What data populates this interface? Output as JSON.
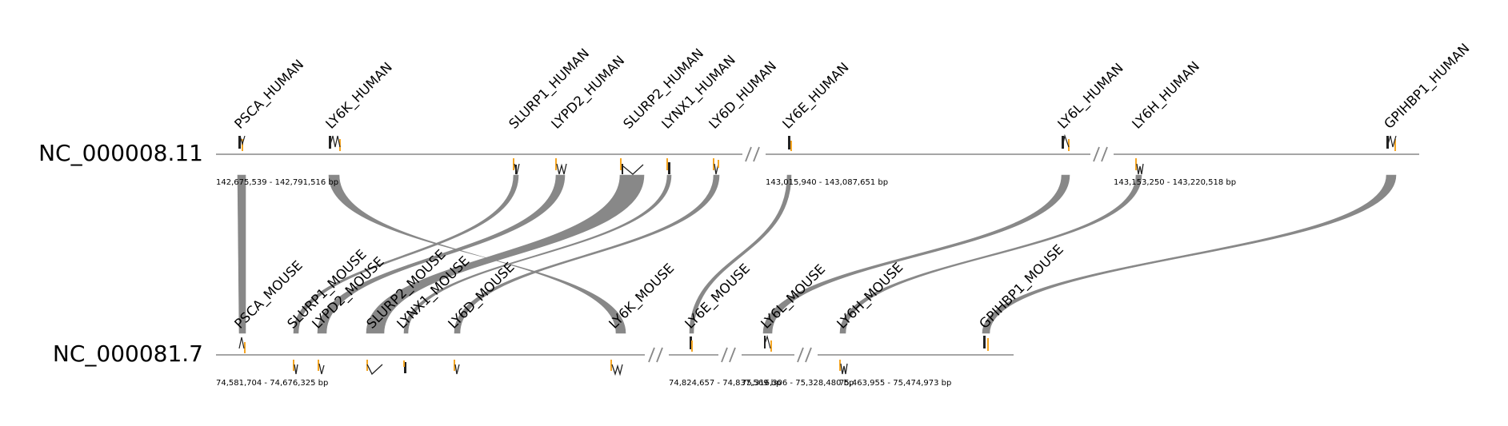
{
  "colors": {
    "track": "#888888",
    "link": "#888888",
    "exon_dark": "#222222",
    "exon_accent": "#f5a623"
  },
  "top": {
    "name": "NC_000008.11",
    "ranges": [
      "142,675,539 - 142,791,516 bp",
      "143,015,940 - 143,087,651 bp",
      "143,153,250 - 143,220,518 bp"
    ],
    "genes": [
      "PSCA_HUMAN",
      "LY6K_HUMAN",
      "SLURP1_HUMAN",
      "LYPD2_HUMAN",
      "SLURP2_HUMAN",
      "LYNX1_HUMAN",
      "LY6D_HUMAN",
      "LY6E_HUMAN",
      "LY6L_HUMAN",
      "LY6H_HUMAN",
      "GPIHBP1_HUMAN"
    ]
  },
  "bottom": {
    "name": "NC_000081.7",
    "ranges": [
      "74,581,704 - 74,676,325 bp",
      "74,824,657 - 74,837,569 bp",
      "75,316,306 - 75,328,480 bp",
      "75,463,955 - 75,474,973 bp"
    ],
    "genes": [
      "PSCA_MOUSE",
      "SLURP1_MOUSE",
      "LYPD2_MOUSE",
      "SLURP2_MOUSE",
      "LYNX1_MOUSE",
      "LY6D_MOUSE",
      "LY6K_MOUSE",
      "LY6E_MOUSE",
      "LY6L_MOUSE",
      "LY6H_MOUSE",
      "GPIHBP1_MOUSE"
    ]
  }
}
